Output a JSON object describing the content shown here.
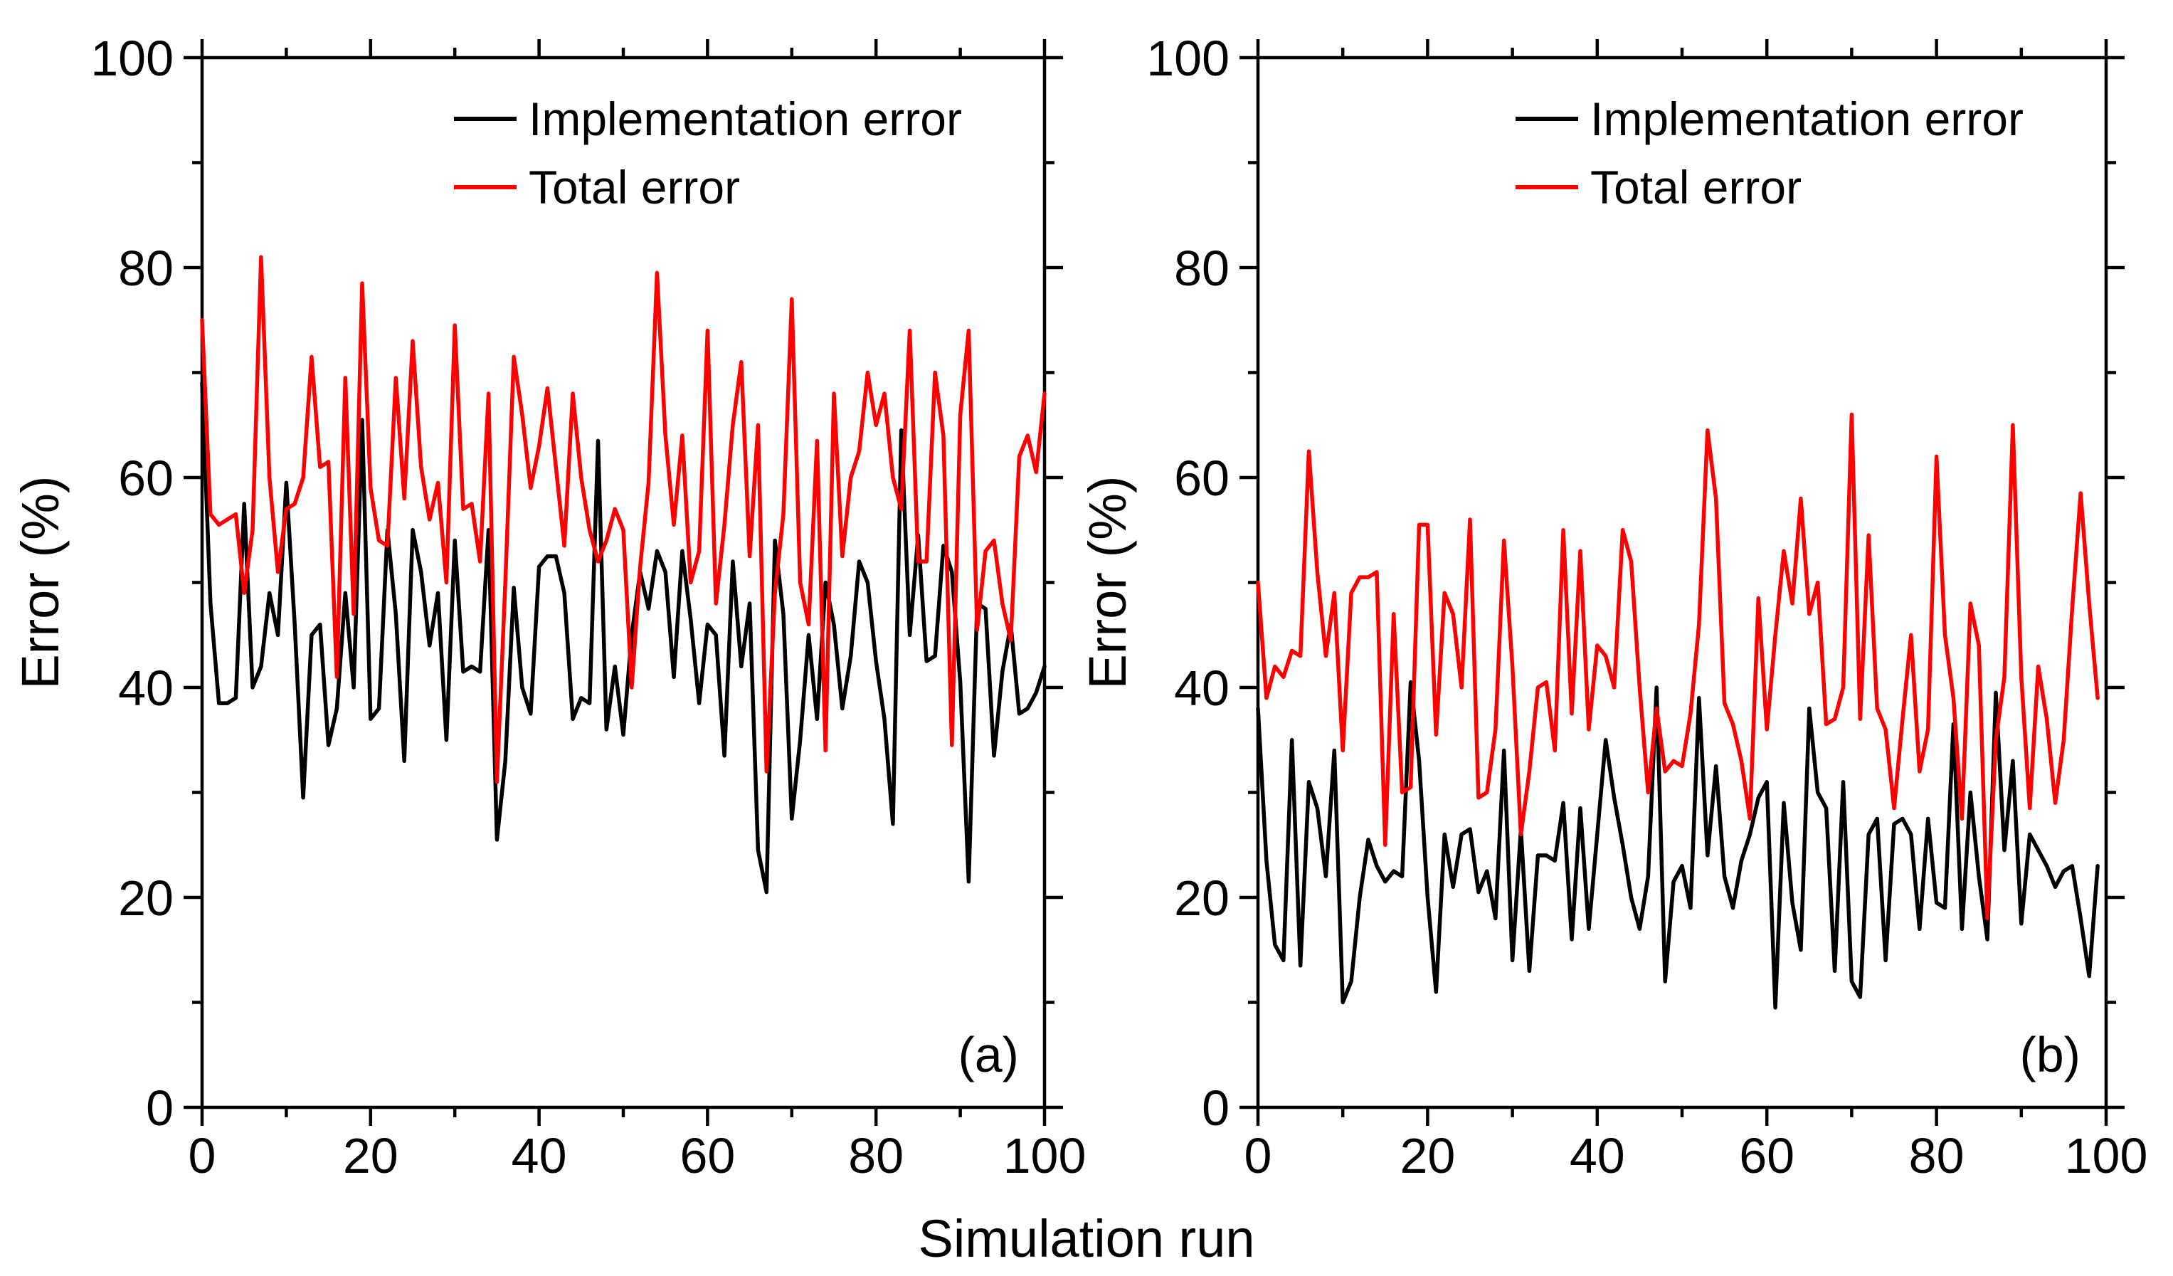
{
  "figure": {
    "shared_xlabel": "Simulation run"
  },
  "chart_data": [
    {
      "type": "line",
      "panel_label": "(a)",
      "xlabel": "Simulation run",
      "ylabel": "Error (%)",
      "xlim": [
        0,
        100
      ],
      "ylim": [
        0,
        100
      ],
      "xticks": [
        0,
        20,
        40,
        60,
        80,
        100
      ],
      "yticks": [
        0,
        20,
        40,
        60,
        80,
        100
      ],
      "grid": false,
      "legend_position": "top-right",
      "series": [
        {
          "name": "Implementation error",
          "color": "#000000",
          "values": [
            69,
            48,
            38.5,
            38.5,
            39,
            57.5,
            40,
            42,
            49,
            45,
            59.5,
            46,
            29.5,
            45,
            46,
            34.5,
            38,
            49,
            40,
            65.5,
            37,
            38,
            55,
            47,
            33,
            55,
            51,
            44,
            49,
            35,
            54,
            41.5,
            42,
            41.5,
            55,
            25.5,
            33,
            49.5,
            40,
            37.5,
            51.5,
            52.5,
            52.5,
            49,
            37,
            39,
            38.5,
            63.5,
            36,
            42,
            35.5,
            45,
            51,
            47.5,
            53,
            51,
            41,
            53,
            46.5,
            38.5,
            46,
            45,
            33.5,
            52,
            42,
            48,
            24.5,
            20.5,
            54,
            47,
            27.5,
            35,
            45,
            37,
            50,
            46,
            38,
            43,
            52,
            50,
            42.5,
            37,
            27,
            64.5,
            45,
            54.5,
            42.5,
            43,
            53.5,
            51,
            40.5,
            21.5,
            48,
            47.5,
            33.5,
            41.5,
            46,
            37.5,
            38,
            39.5,
            42
          ]
        },
        {
          "name": "Total error",
          "color": "#ff0000",
          "values": [
            75,
            56.5,
            55.5,
            56,
            56.5,
            49,
            55,
            81,
            60,
            51,
            57,
            57.5,
            60,
            71.5,
            61,
            61.5,
            41,
            69.5,
            47,
            78.5,
            59,
            54,
            53.5,
            69.5,
            58,
            73,
            61,
            56,
            59.5,
            50,
            74.5,
            57,
            57.5,
            52,
            68,
            31,
            50,
            71.5,
            66,
            59,
            63,
            68.5,
            61,
            53.5,
            68,
            60,
            55,
            52,
            54,
            57,
            55,
            40,
            51.5,
            59.5,
            79.5,
            64,
            55.5,
            64,
            50,
            53,
            74,
            48,
            55.5,
            65,
            71,
            52.5,
            65,
            32,
            49,
            56.5,
            77,
            50,
            46,
            63.5,
            34,
            68,
            52.5,
            60,
            62.5,
            70,
            65,
            68,
            60,
            57,
            74,
            52,
            52,
            70,
            64,
            34.5,
            66,
            74,
            45.5,
            53,
            54,
            48,
            44.5,
            62,
            64,
            60.5,
            68
          ]
        }
      ]
    },
    {
      "type": "line",
      "panel_label": "(b)",
      "xlabel": "Simulation run",
      "ylabel": "Error (%)",
      "xlim": [
        0,
        100
      ],
      "ylim": [
        0,
        100
      ],
      "xticks": [
        0,
        20,
        40,
        60,
        80,
        100
      ],
      "yticks": [
        0,
        20,
        40,
        60,
        80,
        100
      ],
      "grid": false,
      "legend_position": "top-right",
      "series": [
        {
          "name": "Implementation error",
          "color": "#000000",
          "values": [
            38,
            23.5,
            15.5,
            14,
            35,
            13.5,
            31,
            28.5,
            22,
            34,
            10,
            12,
            20,
            25.5,
            23,
            21.5,
            22.5,
            22,
            40.5,
            33,
            20,
            11,
            26,
            21,
            26,
            26.5,
            20.5,
            22.5,
            18,
            34,
            14,
            26.5,
            13,
            24,
            24,
            23.5,
            29,
            16,
            28.5,
            17,
            26,
            35,
            29.5,
            25,
            20,
            17,
            22,
            40,
            12,
            21.5,
            23,
            19,
            39,
            24,
            32.5,
            22,
            19,
            23.5,
            26,
            29.5,
            31,
            9.5,
            29,
            19.5,
            15,
            38,
            30,
            28.5,
            13,
            31,
            12,
            10.5,
            26,
            27.5,
            14,
            27,
            27.5,
            26,
            17,
            27.5,
            19.5,
            19,
            36.5,
            17,
            30,
            22,
            16,
            39.5,
            24.5,
            33,
            17.5,
            26,
            24.5,
            23,
            21,
            22.5,
            23,
            18,
            12.5,
            23
          ]
        },
        {
          "name": "Total error",
          "color": "#ff0000",
          "values": [
            50,
            39,
            42,
            41,
            43.5,
            43,
            62.5,
            51,
            43,
            49,
            34,
            49,
            50.5,
            50.5,
            51,
            25,
            47,
            30,
            30.5,
            55.5,
            55.5,
            35.5,
            49,
            47,
            40,
            56,
            29.5,
            30,
            36,
            54,
            42,
            26,
            32,
            40,
            40.5,
            34,
            55,
            37.5,
            53,
            36,
            44,
            43,
            40,
            55,
            52,
            40,
            30,
            38,
            32,
            33,
            32.5,
            37.5,
            46,
            64.5,
            58,
            38.5,
            36.5,
            33,
            27.5,
            48.5,
            36,
            45,
            53,
            48,
            58,
            47,
            50,
            36.5,
            37,
            40,
            66,
            37,
            54.5,
            38,
            36,
            28.5,
            37,
            45,
            32,
            36,
            62,
            45,
            39,
            27.5,
            48,
            44,
            18,
            35,
            41,
            65,
            41,
            28.5,
            42,
            37,
            29,
            35,
            47.5,
            58.5,
            48,
            39
          ]
        }
      ]
    }
  ]
}
